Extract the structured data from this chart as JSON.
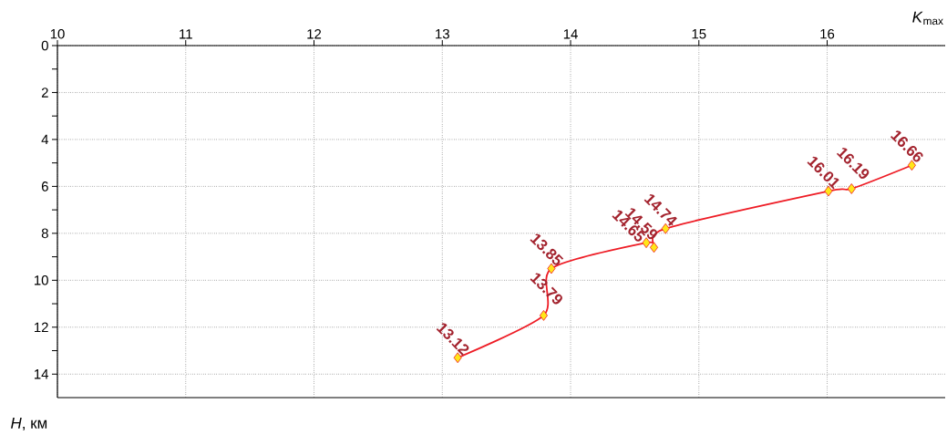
{
  "chart_data": {
    "type": "line",
    "xlabel": "*K*$_{max}$",
    "ylabel": "*H*, км",
    "x": [
      13.12,
      13.79,
      13.85,
      14.59,
      14.65,
      14.74,
      16.01,
      16.19,
      16.66
    ],
    "values": [
      13.3,
      11.5,
      9.5,
      8.4,
      8.6,
      7.8,
      6.2,
      6.1,
      5.1
    ],
    "color": "#ee1c25",
    "marker": "diamond",
    "line_style": "solid",
    "grid": true,
    "annotations": [
      {
        "text": "13.12",
        "x": 13.12,
        "y": 13.3
      },
      {
        "text": "13.79",
        "x": 13.79,
        "y": 11.5
      },
      {
        "text": "13.85",
        "x": 13.85,
        "y": 9.5
      },
      {
        "text": "14.59",
        "x": 14.59,
        "y": 8.4
      },
      {
        "text": "14.65",
        "x": 14.65,
        "y": 8.6
      },
      {
        "text": "14.74",
        "x": 14.74,
        "y": 7.8
      },
      {
        "text": "16.01",
        "x": 16.01,
        "y": 6.2
      },
      {
        "text": "16.19",
        "x": 16.19,
        "y": 6.1
      },
      {
        "text": "16.66",
        "x": 16.66,
        "y": 5.1
      }
    ],
    "xlim": [
      10,
      16.92
    ],
    "ylim": [
      15,
      0
    ],
    "xticks": [
      10,
      11,
      12,
      13,
      14,
      15,
      16
    ],
    "yticks": [
      0,
      {
        "value": 1,
        "label": null
      },
      2,
      {
        "value": 3,
        "label": null
      },
      4,
      {
        "value": 5,
        "label": null
      },
      6,
      {
        "value": 7,
        "label": null
      },
      8,
      {
        "value": 9,
        "label": null
      },
      10,
      {
        "value": 11,
        "label": null
      },
      12,
      {
        "value": 13,
        "label": null
      },
      14
    ]
  }
}
